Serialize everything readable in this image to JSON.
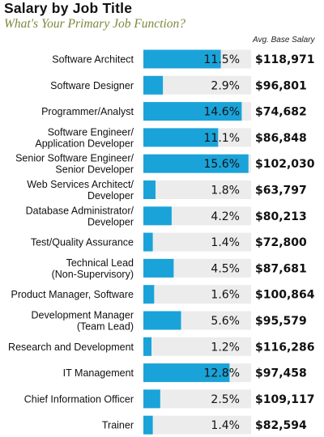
{
  "chart_data": {
    "type": "bar",
    "title": "Salary by Job Title",
    "subtitle": "What's Your Primary Job Function?",
    "column_header": "Avg. Base Salary",
    "categories": [
      [
        "Software Architect"
      ],
      [
        "Software Designer"
      ],
      [
        "Programmer/Analyst"
      ],
      [
        "Software Engineer/",
        "Application Developer"
      ],
      [
        "Senior Software Engineer/",
        "Senior Developer"
      ],
      [
        "Web Services Architect/",
        "Developer"
      ],
      [
        "Database Administrator/",
        "Developer"
      ],
      [
        "Test/Quality Assurance"
      ],
      [
        "Technical Lead",
        "(Non-Supervisory)"
      ],
      [
        "Product Manager, Software"
      ],
      [
        "Development Manager",
        "(Team Lead)"
      ],
      [
        "Research and Development"
      ],
      [
        "IT Management"
      ],
      [
        "Chief Information Officer"
      ],
      [
        "Trainer"
      ]
    ],
    "values": [
      11.5,
      2.9,
      14.6,
      11.1,
      15.6,
      1.8,
      4.2,
      1.4,
      4.5,
      1.6,
      5.6,
      1.2,
      12.8,
      2.5,
      1.4
    ],
    "value_labels": [
      "11.5%",
      "2.9%",
      "14.6%",
      "11.1%",
      "15.6%",
      "1.8%",
      "4.2%",
      "1.4%",
      "4.5%",
      "1.6%",
      "5.6%",
      "1.2%",
      "12.8%",
      "2.5%",
      "1.4%"
    ],
    "salaries": [
      "$118,971",
      "$96,801",
      "$74,682",
      "$86,848",
      "$102,030",
      "$63,797",
      "$80,213",
      "$72,800",
      "$87,681",
      "$100,864",
      "$95,579",
      "$116,286",
      "$97,458",
      "$109,117",
      "$82,594"
    ],
    "xlim": [
      0,
      16
    ],
    "colors": {
      "bar": "#1aa3d9",
      "track": "#ececec"
    }
  }
}
